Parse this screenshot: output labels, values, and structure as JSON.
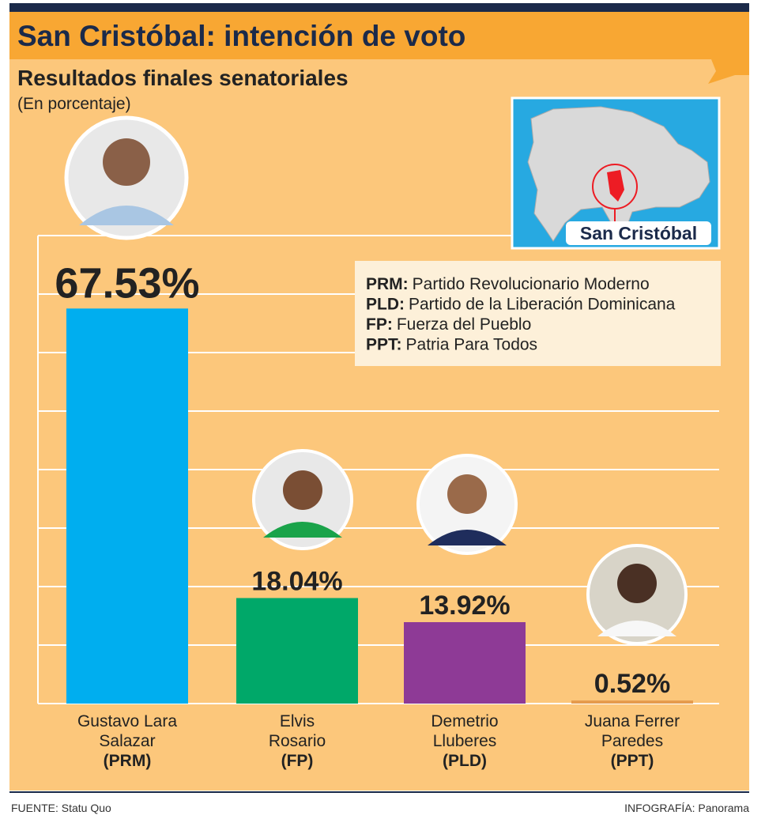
{
  "chart_data": {
    "type": "bar",
    "title": "San Cristóbal: intención de voto",
    "subtitle": "Resultados finales senatoriales",
    "unit_note": "(En porcentaje)",
    "categories": [
      "Gustavo Lara\nSalazar",
      "Elvis\nRosario",
      "Demetrio\nLluberes",
      "Juana Ferrer\nParedes"
    ],
    "parties": [
      "(PRM)",
      "(FP)",
      "(PLD)",
      "(PPT)"
    ],
    "values": [
      67.53,
      18.04,
      13.92,
      0.52
    ],
    "value_labels": [
      "67.53%",
      "18.04%",
      "13.92%",
      "0.52%"
    ],
    "colors": [
      "#00aeef",
      "#00a869",
      "#8e3a96",
      "#e59a4c"
    ],
    "ylim": [
      0,
      80
    ],
    "yticks": [
      0,
      10,
      20,
      30,
      40,
      50,
      60,
      70,
      80
    ],
    "grid": true,
    "legend_notes": [
      {
        "abbr": "PRM:",
        "name": "Partido Revolucionario Moderno"
      },
      {
        "abbr": "PLD:",
        "name": "Partido de la Liberación Dominicana"
      },
      {
        "abbr": "FP:",
        "name": "Fuerza del Pueblo"
      },
      {
        "abbr": "PPT:",
        "name": "Patria Para Todos"
      }
    ],
    "map_label": "San Cristóbal",
    "source": "FUENTE: Statu Quo",
    "credit": "INFOGRAFÍA: Panorama"
  }
}
